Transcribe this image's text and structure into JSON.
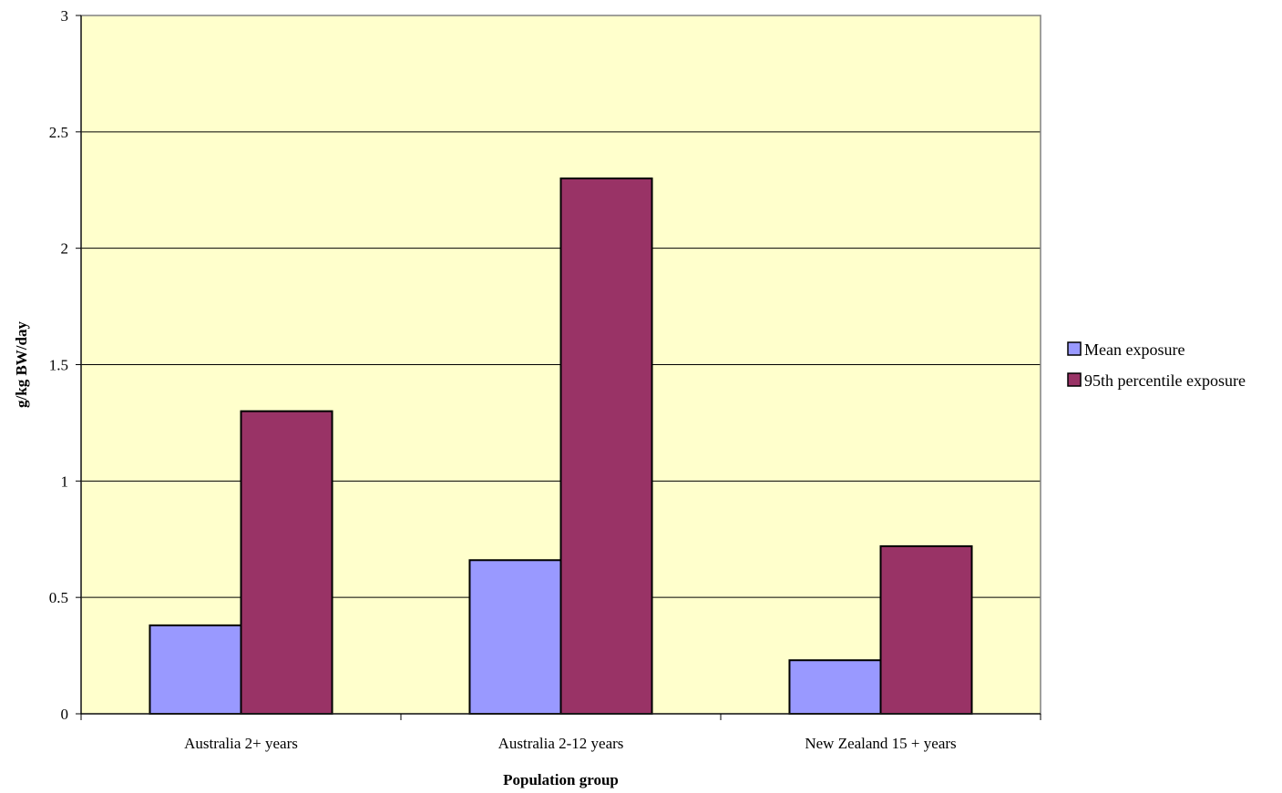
{
  "chart_data": {
    "type": "bar",
    "title": "",
    "xlabel": "Population group",
    "ylabel": "g/kg BW/day",
    "categories": [
      "Australia 2+ years",
      "Australia 2-12 years",
      "New Zealand 15 + years"
    ],
    "series": [
      {
        "name": "Mean exposure",
        "values": [
          0.38,
          0.66,
          0.23
        ],
        "color": "#9999ff"
      },
      {
        "name": "95th percentile exposure",
        "values": [
          1.3,
          2.3,
          0.72
        ],
        "color": "#993366"
      }
    ],
    "ylim": [
      0,
      3
    ],
    "yticks": [
      "0",
      "0.5",
      "1",
      "1.5",
      "2",
      "2.5",
      "3"
    ],
    "grid": true,
    "legend_position": "right",
    "plot_background": "#ffffcc"
  }
}
